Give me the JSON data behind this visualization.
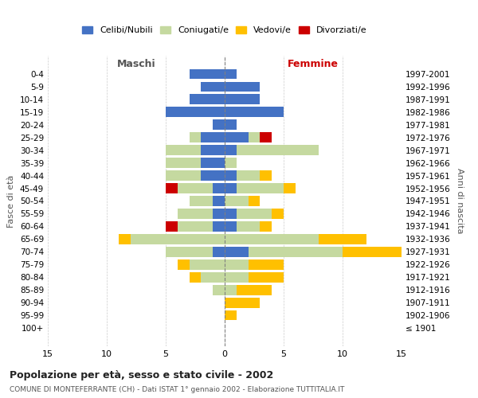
{
  "age_groups": [
    "0-4",
    "5-9",
    "10-14",
    "15-19",
    "20-24",
    "25-29",
    "30-34",
    "35-39",
    "40-44",
    "45-49",
    "50-54",
    "55-59",
    "60-64",
    "65-69",
    "70-74",
    "75-79",
    "80-84",
    "85-89",
    "90-94",
    "95-99",
    "100+"
  ],
  "birth_years": [
    "1997-2001",
    "1992-1996",
    "1987-1991",
    "1982-1986",
    "1977-1981",
    "1972-1976",
    "1967-1971",
    "1962-1966",
    "1957-1961",
    "1952-1956",
    "1947-1951",
    "1942-1946",
    "1937-1941",
    "1932-1936",
    "1927-1931",
    "1922-1926",
    "1917-1921",
    "1912-1916",
    "1907-1911",
    "1902-1906",
    "≤ 1901"
  ],
  "maschi": {
    "celibi": [
      3,
      2,
      3,
      5,
      1,
      2,
      2,
      2,
      2,
      1,
      1,
      1,
      1,
      0,
      1,
      0,
      0,
      0,
      0,
      0,
      0
    ],
    "coniugati": [
      0,
      0,
      0,
      0,
      0,
      1,
      3,
      3,
      3,
      3,
      2,
      3,
      3,
      8,
      4,
      3,
      2,
      1,
      0,
      0,
      0
    ],
    "vedovi": [
      0,
      0,
      0,
      0,
      0,
      0,
      0,
      0,
      0,
      0,
      0,
      0,
      0,
      1,
      0,
      1,
      1,
      0,
      0,
      0,
      0
    ],
    "divorziati": [
      0,
      0,
      0,
      0,
      0,
      0,
      0,
      0,
      0,
      1,
      0,
      0,
      1,
      0,
      0,
      0,
      0,
      0,
      0,
      0,
      0
    ]
  },
  "femmine": {
    "nubili": [
      1,
      3,
      3,
      5,
      1,
      2,
      1,
      0,
      1,
      1,
      0,
      1,
      1,
      0,
      2,
      0,
      0,
      0,
      0,
      0,
      0
    ],
    "coniugate": [
      0,
      0,
      0,
      0,
      0,
      1,
      7,
      1,
      2,
      4,
      2,
      3,
      2,
      8,
      8,
      2,
      2,
      1,
      0,
      0,
      0
    ],
    "vedove": [
      0,
      0,
      0,
      0,
      0,
      0,
      0,
      0,
      1,
      1,
      1,
      1,
      1,
      4,
      5,
      3,
      3,
      3,
      3,
      1,
      0
    ],
    "divorziate": [
      0,
      0,
      0,
      0,
      0,
      1,
      0,
      0,
      0,
      0,
      0,
      0,
      0,
      0,
      0,
      0,
      0,
      0,
      0,
      0,
      0
    ]
  },
  "colors": {
    "celibi": "#4472c4",
    "coniugati": "#c5d9a0",
    "vedovi": "#ffc000",
    "divorziati": "#cc0000"
  },
  "title": "Popolazione per età, sesso e stato civile - 2002",
  "subtitle": "COMUNE DI MONTEFERRANTE (CH) - Dati ISTAT 1° gennaio 2002 - Elaborazione TUTTITALIA.IT",
  "xlabel_left": "Maschi",
  "xlabel_right": "Femmine",
  "ylabel_left": "Fasce di età",
  "ylabel_right": "Anni di nascita",
  "legend_labels": [
    "Celibi/Nubili",
    "Coniugati/e",
    "Vedovi/e",
    "Divorziati/e"
  ],
  "xlim": 15,
  "bg_color": "#ffffff",
  "grid_color": "#cccccc"
}
